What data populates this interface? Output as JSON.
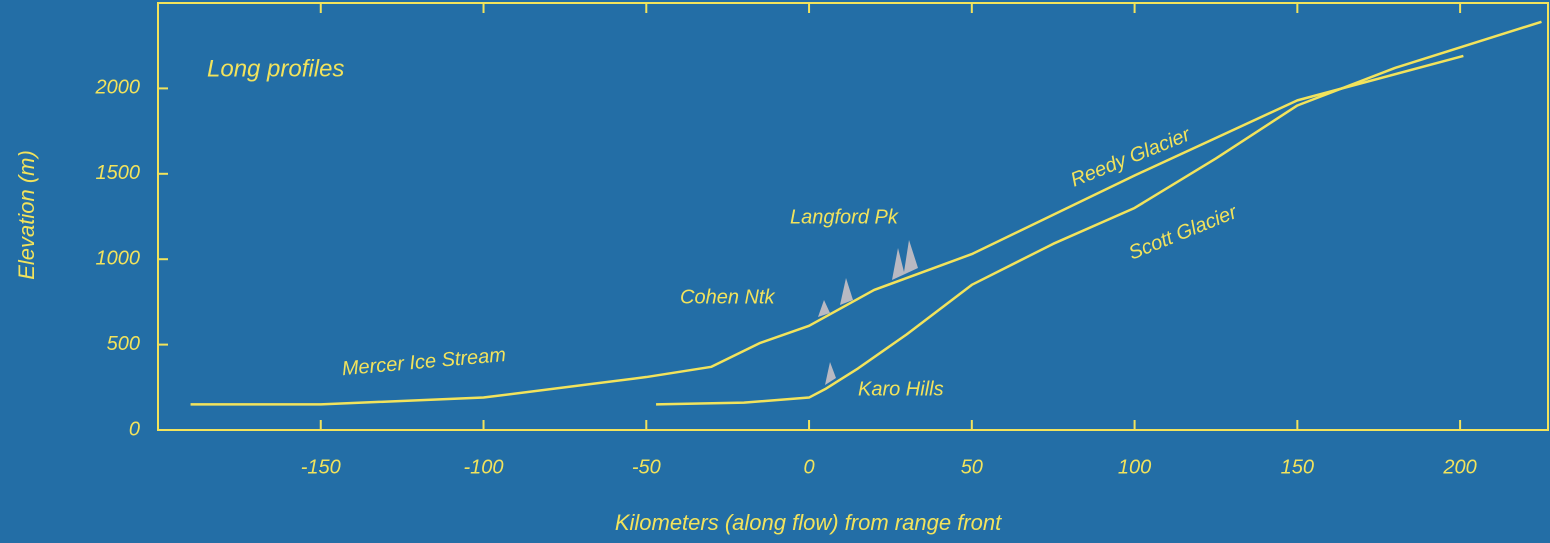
{
  "chart_data": {
    "type": "line",
    "title": "Long profiles",
    "x_label": "Kilometers (along flow) from range front",
    "y_label": "Elevation (m)",
    "annotations": [
      "Mercer Ice Stream",
      "Langford Pk",
      "Cohen Ntk",
      "Karo Hills"
    ],
    "series": [
      {
        "name": "Reedy Glacier",
        "color": "#f2e35c",
        "x": [
          -190,
          -150,
          -100,
          -50,
          -30,
          -15,
          0,
          20,
          50,
          100,
          150,
          201
        ],
        "values": [
          150,
          150,
          190,
          310,
          370,
          510,
          610,
          820,
          1030,
          1490,
          1930,
          2190
        ]
      },
      {
        "name": "Scott Glacier",
        "color": "#f2e35c",
        "x": [
          -47,
          -20,
          0,
          5,
          15,
          30,
          50,
          75,
          100,
          125,
          150,
          180,
          225
        ],
        "values": [
          150,
          160,
          190,
          240,
          360,
          560,
          850,
          1090,
          1300,
          1590,
          1900,
          2120,
          2390
        ]
      }
    ],
    "xlim": [
      -200,
      227
    ],
    "ylim": [
      0,
      2500
    ],
    "xticks": [
      -150,
      -100,
      -50,
      0,
      50,
      100,
      150,
      200
    ],
    "yticks": [
      0,
      500,
      1000,
      1500,
      2000
    ],
    "grid": false
  }
}
